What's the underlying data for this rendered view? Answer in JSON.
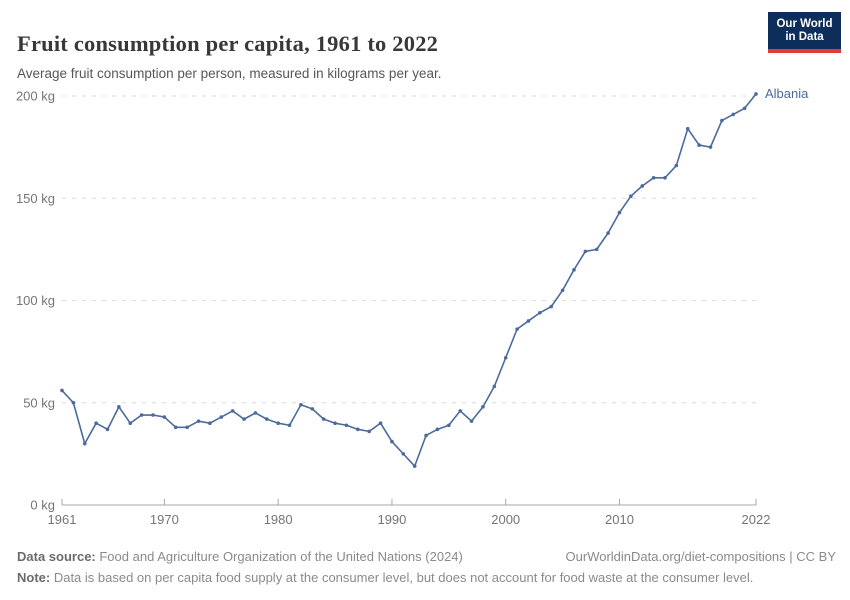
{
  "header": {
    "title": "Fruit consumption per capita, 1961 to 2022",
    "subtitle": "Average fruit consumption per person, measured in kilograms per year.",
    "logo": {
      "line1": "Our World",
      "line2": "in Data",
      "bg_color": "#0D2E5A",
      "bar_color": "#DC3E36"
    }
  },
  "chart_data": {
    "type": "line",
    "title": "Fruit consumption per capita, 1961 to 2022",
    "subtitle": "Average fruit consumption per person, measured in kilograms per year.",
    "xlabel": "",
    "ylabel": "kg per year",
    "unit": "kg",
    "ylim": [
      0,
      200
    ],
    "xlim": [
      1961,
      2022
    ],
    "grid": "horizontal-dashed",
    "legend_position": "end-of-line-label",
    "end_label": "Albania",
    "line_color": "#4C6A9C",
    "years": [
      1961,
      1962,
      1963,
      1964,
      1965,
      1966,
      1967,
      1968,
      1969,
      1970,
      1971,
      1972,
      1973,
      1974,
      1975,
      1976,
      1977,
      1978,
      1979,
      1980,
      1981,
      1982,
      1983,
      1984,
      1985,
      1986,
      1987,
      1988,
      1989,
      1990,
      1991,
      1992,
      1993,
      1994,
      1995,
      1996,
      1997,
      1998,
      1999,
      2000,
      2001,
      2002,
      2003,
      2004,
      2005,
      2006,
      2007,
      2008,
      2009,
      2010,
      2011,
      2012,
      2013,
      2014,
      2015,
      2016,
      2017,
      2018,
      2019,
      2020,
      2021,
      2022
    ],
    "series": [
      {
        "name": "Albania",
        "color": "#4C6A9C",
        "values": [
          56,
          50,
          30,
          40,
          37,
          48,
          40,
          44,
          44,
          43,
          38,
          38,
          41,
          40,
          43,
          46,
          42,
          45,
          42,
          40,
          39,
          49,
          47,
          42,
          40,
          39,
          37,
          36,
          40,
          31,
          25,
          19,
          34,
          37,
          39,
          46,
          41,
          48,
          58,
          72,
          86,
          90,
          94,
          97,
          105,
          115,
          124,
          125,
          133,
          143,
          151,
          156,
          160,
          160,
          166,
          184,
          176,
          175,
          188,
          191,
          194,
          201
        ]
      }
    ],
    "y_ticks": [
      {
        "value": 0,
        "label": "0 kg"
      },
      {
        "value": 50,
        "label": "50 kg"
      },
      {
        "value": 100,
        "label": "100 kg"
      },
      {
        "value": 150,
        "label": "150 kg"
      },
      {
        "value": 200,
        "label": "200 kg"
      }
    ],
    "x_ticks": [
      {
        "value": 1961,
        "label": "1961"
      },
      {
        "value": 1970,
        "label": "1970"
      },
      {
        "value": 1980,
        "label": "1980"
      },
      {
        "value": 1990,
        "label": "1990"
      },
      {
        "value": 2000,
        "label": "2000"
      },
      {
        "value": 2010,
        "label": "2010"
      },
      {
        "value": 2022,
        "label": "2022"
      }
    ]
  },
  "footer": {
    "data_source_label": "Data source:",
    "data_source_text": " Food and Agriculture Organization of the United Nations (2024)",
    "link": "OurWorldinData.org/diet-compositions | CC BY",
    "note_label": "Note:",
    "note_text": " Data is based on per capita food supply at the consumer level, but does not account for food waste at the consumer level."
  }
}
